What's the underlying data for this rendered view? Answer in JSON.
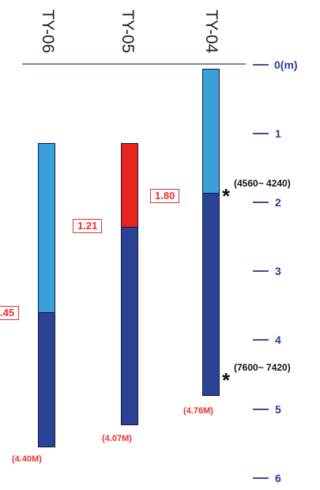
{
  "headers": [
    "TY-06",
    "TY-05",
    "TY-04"
  ],
  "depth_ticks": [
    "0(m)",
    "1",
    "2",
    "3",
    "4",
    "5",
    "6"
  ],
  "cores": [
    {
      "name": "TY-06",
      "boundary_label": ".45",
      "total_label": "(4.40M)"
    },
    {
      "name": "TY-05",
      "boundary_label": "1.21",
      "total_label": "(4.07M)"
    },
    {
      "name": "TY-04",
      "boundary_label": "1.80",
      "total_label": "(4.76M)"
    }
  ],
  "dates": [
    "(4560~ 4240)",
    "(7600~ 7420)"
  ],
  "colors": {
    "upper": "#3a9fdb",
    "lower": "#2c4294",
    "red": "#e8221c",
    "label": "#e8322b",
    "axis": "#2a3e95"
  }
}
